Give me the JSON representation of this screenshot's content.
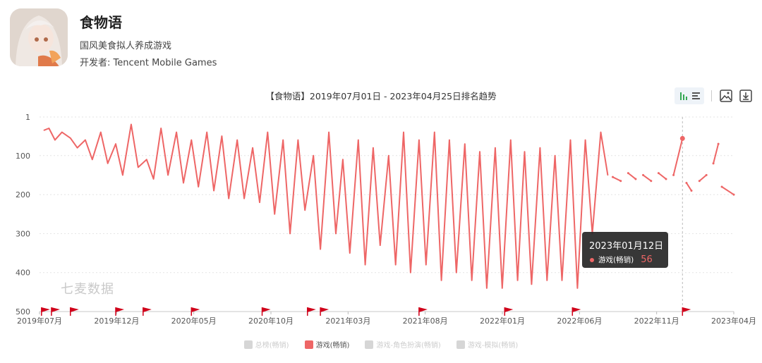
{
  "app": {
    "name": "食物语",
    "description": "国风美食拟人养成游戏",
    "developer": "开发者: Tencent Mobile Games"
  },
  "watermark": "七麦数据",
  "colors": {
    "series": "#ee6666",
    "disabled": "#d6d6d6",
    "marker": "#d0021b",
    "grid": "#e4e4e4"
  },
  "toolbar": {
    "view_icon": "bar-list-toggle-icon",
    "image_icon": "save-image-icon",
    "download_icon": "download-icon"
  },
  "tooltip": {
    "date": "2023年01月12日",
    "series": "游戏(畅销)",
    "value": "56"
  },
  "chart_data": {
    "type": "line",
    "title": "【食物语】2019年07月01日 - 2023年04月25日排名趋势",
    "y_inverted": true,
    "ylim": [
      1,
      500
    ],
    "y_ticks": [
      "1",
      "100",
      "200",
      "300",
      "400",
      "500"
    ],
    "x_tick_labels": [
      "2019年07月",
      "2019年12月",
      "2020年05月",
      "2020年10月",
      "2021年03月",
      "2021年08月",
      "2022年01月",
      "2022年06月",
      "2022年11月",
      "2023年04月"
    ],
    "legend": [
      "总榜(畅销)",
      "游戏(畅销)",
      "游戏-角色扮演(畅销)",
      "游戏-模拟(畅销)"
    ],
    "active_series": "游戏(畅销)",
    "grid": true,
    "series": [
      {
        "name": "游戏(畅销)",
        "x": [
          "2019-07-10",
          "2019-07-20",
          "2019-08-01",
          "2019-08-15",
          "2019-09-01",
          "2019-09-15",
          "2019-10-01",
          "2019-10-15",
          "2019-11-01",
          "2019-11-15",
          "2019-12-01",
          "2019-12-15",
          "2020-01-01",
          "2020-01-15",
          "2020-02-01",
          "2020-02-15",
          "2020-03-01",
          "2020-03-15",
          "2020-04-01",
          "2020-04-15",
          "2020-05-01",
          "2020-05-15",
          "2020-06-01",
          "2020-06-15",
          "2020-07-01",
          "2020-07-15",
          "2020-08-01",
          "2020-08-15",
          "2020-09-01",
          "2020-09-15",
          "2020-10-01",
          "2020-10-15",
          "2020-11-01",
          "2020-11-15",
          "2020-12-01",
          "2020-12-15",
          "2021-01-01",
          "2021-01-15",
          "2021-02-01",
          "2021-02-15",
          "2021-03-01",
          "2021-03-15",
          "2021-04-01",
          "2021-04-15",
          "2021-05-01",
          "2021-05-15",
          "2021-06-01",
          "2021-06-15",
          "2021-07-01",
          "2021-07-15",
          "2021-08-01",
          "2021-08-15",
          "2021-09-01",
          "2021-09-15",
          "2021-10-01",
          "2021-10-15",
          "2021-11-01",
          "2021-11-15",
          "2021-12-01",
          "2021-12-15",
          "2022-01-01",
          "2022-01-15",
          "2022-02-01",
          "2022-02-15",
          "2022-03-01",
          "2022-03-15",
          "2022-04-01",
          "2022-04-15",
          "2022-05-01",
          "2022-05-15",
          "2022-06-01",
          "2022-06-15",
          "2022-07-01",
          "2022-07-15",
          "2022-08-01",
          "2022-08-15"
        ],
        "values": [
          35,
          30,
          60,
          40,
          55,
          80,
          60,
          110,
          40,
          120,
          70,
          150,
          20,
          130,
          110,
          160,
          30,
          150,
          40,
          170,
          60,
          180,
          40,
          190,
          50,
          210,
          60,
          210,
          80,
          220,
          40,
          250,
          60,
          300,
          60,
          240,
          100,
          340,
          40,
          300,
          110,
          350,
          60,
          380,
          80,
          330,
          100,
          380,
          40,
          400,
          60,
          380,
          40,
          420,
          60,
          400,
          70,
          420,
          90,
          440,
          80,
          440,
          60,
          420,
          90,
          430,
          80,
          420,
          100,
          420,
          60,
          440,
          60,
          300,
          40,
          150
        ],
        "line_x": [
          "2022-08-25",
          "2022-09-10",
          "2022-09-25",
          "2022-10-10",
          "2022-10-25",
          "2022-11-10",
          "2022-11-25",
          "2022-12-10",
          "2022-12-25",
          "2023-01-12",
          "2023-01-20",
          "2023-01-30",
          "2023-02-15",
          "2023-03-01",
          "2023-03-15",
          "2023-03-25",
          "2023-04-01",
          "2023-04-25"
        ],
        "line_values": [
          155,
          165,
          145,
          160,
          150,
          165,
          145,
          160,
          150,
          56,
          170,
          190,
          165,
          150,
          120,
          70,
          180,
          200
        ]
      }
    ],
    "event_markers": [
      "2019-07-05",
      "2019-07-25",
      "2019-09-01",
      "2019-12-01",
      "2020-01-25",
      "2020-05-01",
      "2020-09-20",
      "2020-12-20",
      "2021-01-15",
      "2021-08-01",
      "2022-01-20",
      "2022-06-05",
      "2023-01-12"
    ]
  }
}
